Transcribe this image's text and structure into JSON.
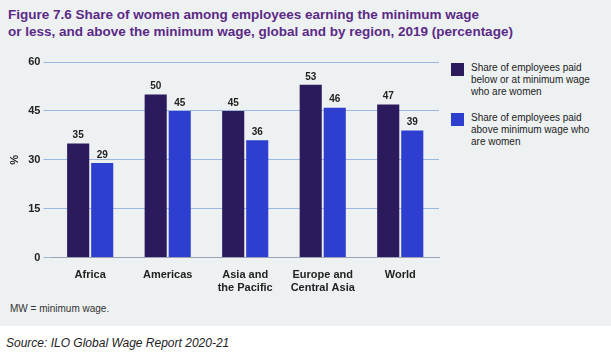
{
  "chart_data": {
    "type": "bar",
    "title": [
      "Figure 7.6 Share of women among employees earning the minimum wage",
      "or less, and above the minimum wage, global and by region, 2019 (percentage)"
    ],
    "y_label": "%",
    "categories": [
      "Africa",
      "Americas",
      "Asia and the Pacific",
      "Europe and Central Asia",
      "World"
    ],
    "series": [
      {
        "name": "Share of employees paid below or at minimum wage who are women",
        "color": "#2b1b5c",
        "values": [
          35,
          50,
          45,
          53,
          47
        ]
      },
      {
        "name": "Share of employees paid above minimum wage who are women",
        "color": "#2e3fd0",
        "values": [
          29,
          45,
          36,
          46,
          39
        ]
      }
    ],
    "ylim": [
      0,
      60
    ],
    "yticks": [
      0,
      15,
      30,
      45,
      60
    ],
    "grid": true,
    "legend": "right",
    "data_labels": true,
    "note": "MW = minimum wage.",
    "source": "Source: ILO Global Wage Report 2020-21"
  }
}
